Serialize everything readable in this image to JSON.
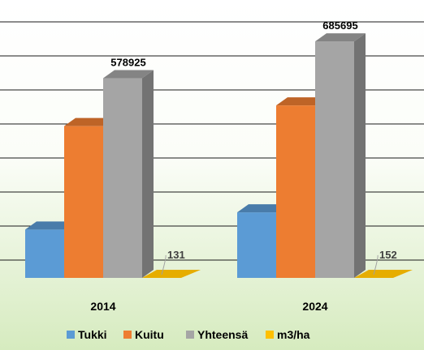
{
  "chart_data": {
    "type": "bar",
    "categories": [
      "2014",
      "2024"
    ],
    "series": [
      {
        "name": "Tukki",
        "values": [
          140000,
          190000
        ],
        "color": "#5b9bd5",
        "show_label": false
      },
      {
        "name": "Kuitu",
        "values": [
          440000,
          500000
        ],
        "color": "#ed7d31",
        "show_label": false
      },
      {
        "name": "Yhteensä",
        "values": [
          578925,
          685695
        ],
        "color": "#a5a5a5",
        "show_label": true
      },
      {
        "name": "m3/ha",
        "values": [
          131,
          152
        ],
        "color": "#ffc000",
        "show_label": true
      }
    ],
    "ylim": [
      0,
      700000
    ],
    "grid": true,
    "legend_position": "bottom",
    "style": "3d-clustered-column"
  }
}
